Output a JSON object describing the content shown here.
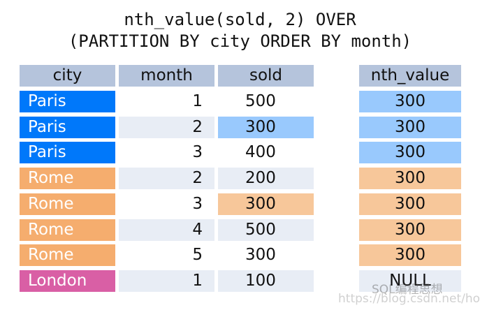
{
  "title": {
    "line1": "nth_value(sold, 2) OVER",
    "line2": "(PARTITION BY city ORDER BY month)"
  },
  "headers": {
    "city": "city",
    "month": "month",
    "sold": "sold",
    "nth": "nth_value"
  },
  "colors": {
    "header": "#b5c4dc",
    "paris": "#0078fa",
    "paris_light": "#99c9fd",
    "rome": "#f5ad6e",
    "rome_light": "#f7c79a",
    "london": "#d95fa5",
    "stripe": "#e8edf5"
  },
  "rows": [
    {
      "city": "Paris",
      "month": "1",
      "sold": "500",
      "nth": "300",
      "city_color": "#0078fa",
      "month_bg": "#ffffff",
      "sold_bg": "#ffffff",
      "nth_bg": "#99c9fd"
    },
    {
      "city": "Paris",
      "month": "2",
      "sold": "300",
      "nth": "300",
      "city_color": "#0078fa",
      "month_bg": "#e8edf5",
      "sold_bg": "#99c9fd",
      "nth_bg": "#99c9fd"
    },
    {
      "city": "Paris",
      "month": "3",
      "sold": "400",
      "nth": "300",
      "city_color": "#0078fa",
      "month_bg": "#ffffff",
      "sold_bg": "#ffffff",
      "nth_bg": "#99c9fd"
    },
    {
      "city": "Rome",
      "month": "2",
      "sold": "200",
      "nth": "300",
      "city_color": "#f5ad6e",
      "month_bg": "#e8edf5",
      "sold_bg": "#e8edf5",
      "nth_bg": "#f7c79a"
    },
    {
      "city": "Rome",
      "month": "3",
      "sold": "300",
      "nth": "300",
      "city_color": "#f5ad6e",
      "month_bg": "#ffffff",
      "sold_bg": "#f7c79a",
      "nth_bg": "#f7c79a"
    },
    {
      "city": "Rome",
      "month": "4",
      "sold": "500",
      "nth": "300",
      "city_color": "#f5ad6e",
      "month_bg": "#e8edf5",
      "sold_bg": "#e8edf5",
      "nth_bg": "#f7c79a"
    },
    {
      "city": "Rome",
      "month": "5",
      "sold": "300",
      "nth": "300",
      "city_color": "#f5ad6e",
      "month_bg": "#ffffff",
      "sold_bg": "#ffffff",
      "nth_bg": "#f7c79a"
    },
    {
      "city": "London",
      "month": "1",
      "sold": "100",
      "nth": "NULL",
      "city_color": "#d95fa5",
      "month_bg": "#e8edf5",
      "sold_bg": "#e8edf5",
      "nth_bg": "#e8edf5"
    }
  ],
  "watermark": {
    "brand": "SQL编程思想",
    "url": "https://blog.csdn.net/horses"
  }
}
